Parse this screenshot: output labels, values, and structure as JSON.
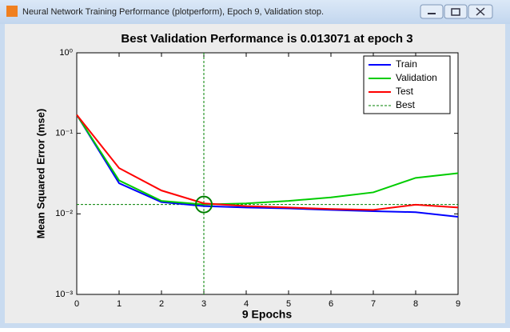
{
  "window": {
    "title": "Neural Network Training Performance (plotperform), Epoch 9, Validation stop."
  },
  "chart_data": {
    "type": "line",
    "title": "Best Validation Performance is 0.013071 at epoch 3",
    "xlabel": "9 Epochs",
    "ylabel": "Mean Squared Error  (mse)",
    "x": [
      0,
      1,
      2,
      3,
      4,
      5,
      6,
      7,
      8,
      9
    ],
    "xlim": [
      0,
      9
    ],
    "xticks": [
      0,
      1,
      2,
      3,
      4,
      5,
      6,
      7,
      8,
      9
    ],
    "ylim": [
      0.001,
      1
    ],
    "yscale": "log",
    "yticks": [
      {
        "value": 1,
        "label": "10⁰"
      },
      {
        "value": 0.1,
        "label": "10⁻¹"
      },
      {
        "value": 0.01,
        "label": "10⁻²"
      },
      {
        "value": 0.001,
        "label": "10⁻³"
      }
    ],
    "legend": "upper right",
    "series": [
      {
        "name": "Train",
        "color": "#0000ff",
        "values": [
          0.17,
          0.024,
          0.014,
          0.0125,
          0.012,
          0.0117,
          0.0112,
          0.0108,
          0.0105,
          0.0092
        ]
      },
      {
        "name": "Validation",
        "color": "#00cc00",
        "values": [
          0.17,
          0.026,
          0.0145,
          0.013071,
          0.0135,
          0.0145,
          0.016,
          0.0185,
          0.028,
          0.032
        ]
      },
      {
        "name": "Test",
        "color": "#ff0000",
        "values": [
          0.17,
          0.037,
          0.0195,
          0.0135,
          0.0125,
          0.012,
          0.0115,
          0.0112,
          0.013,
          0.012
        ]
      }
    ],
    "best": {
      "name": "Best",
      "color": "#008000",
      "epoch": 3,
      "value": 0.013071
    }
  }
}
